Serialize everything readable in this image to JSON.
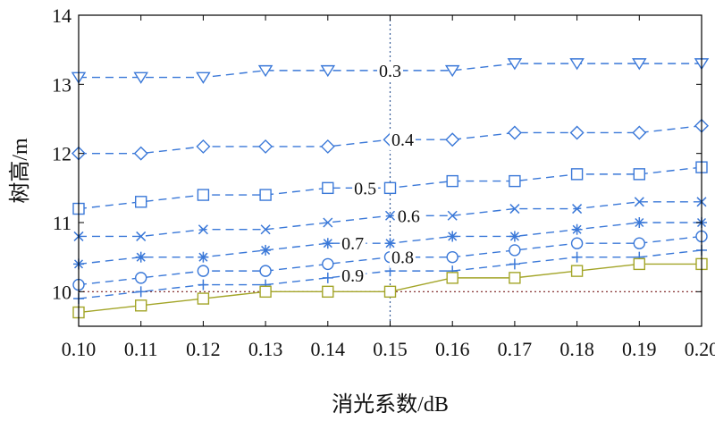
{
  "chart_data": {
    "type": "line",
    "xlabel": "消光系数/dB",
    "ylabel": "树高/m",
    "xlim": [
      0.1,
      0.2
    ],
    "ylim": [
      9.5,
      14
    ],
    "x": [
      0.1,
      0.11,
      0.12,
      0.13,
      0.14,
      0.15,
      0.16,
      0.17,
      0.18,
      0.19,
      0.2
    ],
    "x_tick_labels": [
      "0.10",
      "0.11",
      "0.12",
      "0.13",
      "0.14",
      "0.15",
      "0.16",
      "0.17",
      "0.18",
      "0.19",
      "0.20"
    ],
    "y_ticks": [
      10,
      11,
      12,
      13,
      14
    ],
    "y_tick_labels": [
      "10",
      "11",
      "12",
      "13",
      "14"
    ],
    "reference_line_y": 10.0,
    "reference_line_x": 0.15,
    "series": [
      {
        "name": "0.3",
        "marker": "triangle-down",
        "color": "#3a78d8",
        "values": [
          13.1,
          13.1,
          13.1,
          13.2,
          13.2,
          13.2,
          13.2,
          13.3,
          13.3,
          13.3,
          13.3
        ]
      },
      {
        "name": "0.4",
        "marker": "diamond",
        "color": "#3a78d8",
        "values": [
          12.0,
          12.0,
          12.1,
          12.1,
          12.1,
          12.2,
          12.2,
          12.3,
          12.3,
          12.3,
          12.4
        ]
      },
      {
        "name": "0.5",
        "marker": "square",
        "color": "#3a78d8",
        "values": [
          11.2,
          11.3,
          11.4,
          11.4,
          11.5,
          11.5,
          11.6,
          11.6,
          11.7,
          11.7,
          11.8
        ]
      },
      {
        "name": "0.6",
        "marker": "x",
        "color": "#3a78d8",
        "values": [
          10.8,
          10.8,
          10.9,
          10.9,
          11.0,
          11.1,
          11.1,
          11.2,
          11.2,
          11.3,
          11.3
        ]
      },
      {
        "name": "0.7",
        "marker": "asterisk",
        "color": "#3a78d8",
        "values": [
          10.4,
          10.5,
          10.5,
          10.6,
          10.7,
          10.7,
          10.8,
          10.8,
          10.9,
          11.0,
          11.0
        ]
      },
      {
        "name": "0.8",
        "marker": "circle",
        "color": "#3a78d8",
        "values": [
          10.1,
          10.2,
          10.3,
          10.3,
          10.4,
          10.5,
          10.5,
          10.6,
          10.7,
          10.7,
          10.8
        ]
      },
      {
        "name": "0.9",
        "marker": "plus",
        "color": "#3a78d8",
        "values": [
          9.9,
          10.0,
          10.1,
          10.1,
          10.2,
          10.3,
          10.3,
          10.4,
          10.5,
          10.5,
          10.6
        ]
      },
      {
        "name": "",
        "marker": "square",
        "color": "#a3a528",
        "line_style": "solid",
        "values": [
          9.7,
          9.8,
          9.9,
          10.0,
          10.0,
          10.0,
          10.2,
          10.2,
          10.3,
          10.4,
          10.4
        ]
      }
    ],
    "label_positions": {
      "0.3": 0.15,
      "0.4": 0.152,
      "0.5": 0.146,
      "0.6": 0.153,
      "0.7": 0.144,
      "0.8": 0.152,
      "0.9": 0.144
    }
  }
}
